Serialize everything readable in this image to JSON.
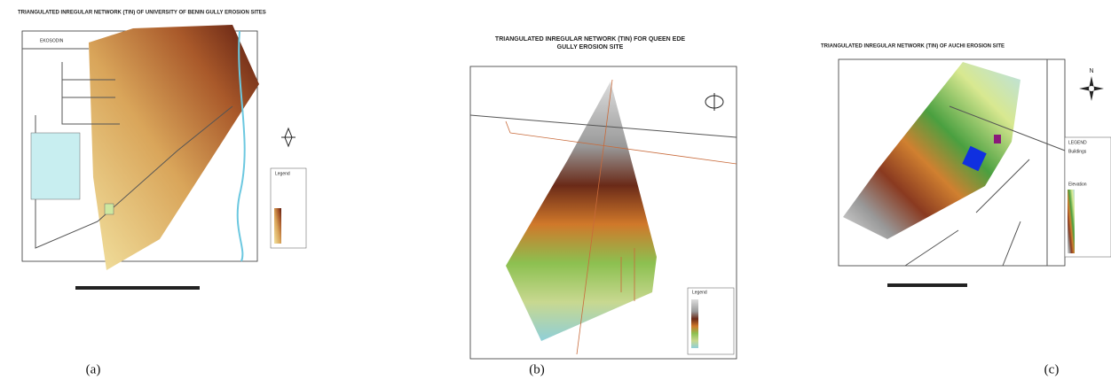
{
  "panels": [
    {
      "title": "TRIANGULATED INREGULAR NETWORK (TIN)  OF UNIVERSITY OF BENIN  GULLY EROSION  SITES",
      "labels": [
        "EKOSODIN",
        "Legend"
      ],
      "caption": "(a)"
    },
    {
      "title": [
        "TRIANGULATED INREGULAR NETWORK (TIN) FOR QUEEN EDE",
        "GULLY EROSION SITE"
      ],
      "labels": [
        "Legend"
      ],
      "caption": "(b)"
    },
    {
      "title": "TRIANGULATED INREGULAR NETWORK (TIN) OF AUCHI EROSION SITE",
      "labels": [
        "LEGEND",
        "Buildings",
        "Elevation",
        "N"
      ],
      "caption": "(c)"
    }
  ]
}
